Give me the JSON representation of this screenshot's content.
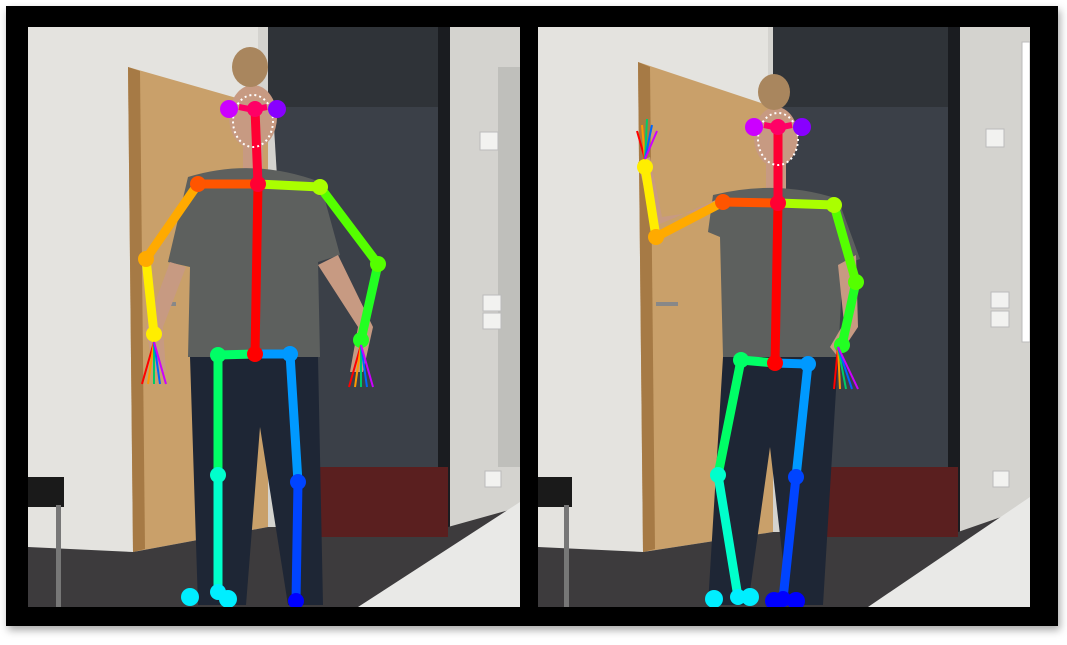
{
  "scene": {
    "description_colors": {
      "wall": "#e4e3df",
      "door": "#c9a06a",
      "door_dark": "#a67a45",
      "doorway_dark": "#3b4048",
      "floor": "#3d3b3d",
      "floor_red": "#5a1f1f",
      "shirt": "#5d605e",
      "jeans": "#1e2635",
      "skin": "#c79a82"
    }
  },
  "skeleton_colors": {
    "head": "#ff0066",
    "neck": "#ff0033",
    "torso": "#ff0000",
    "r_shoulder": "#ff5500",
    "r_upper_arm": "#ffaa00",
    "r_forearm": "#ffee00",
    "l_shoulder": "#aaff00",
    "l_upper_arm": "#55ff00",
    "l_forearm": "#22ff22",
    "r_thigh": "#00ff66",
    "r_shin": "#00ffcc",
    "r_foot": "#00eeff",
    "l_thigh": "#0099ff",
    "l_shin": "#0044ff",
    "l_foot": "#0000ff",
    "ear": "#cc00ff",
    "face": "#ffffff"
  },
  "panels": [
    {
      "name": "left",
      "pose": "standing-hands-at-hips"
    },
    {
      "name": "right",
      "pose": "waving-hand-raised"
    }
  ]
}
